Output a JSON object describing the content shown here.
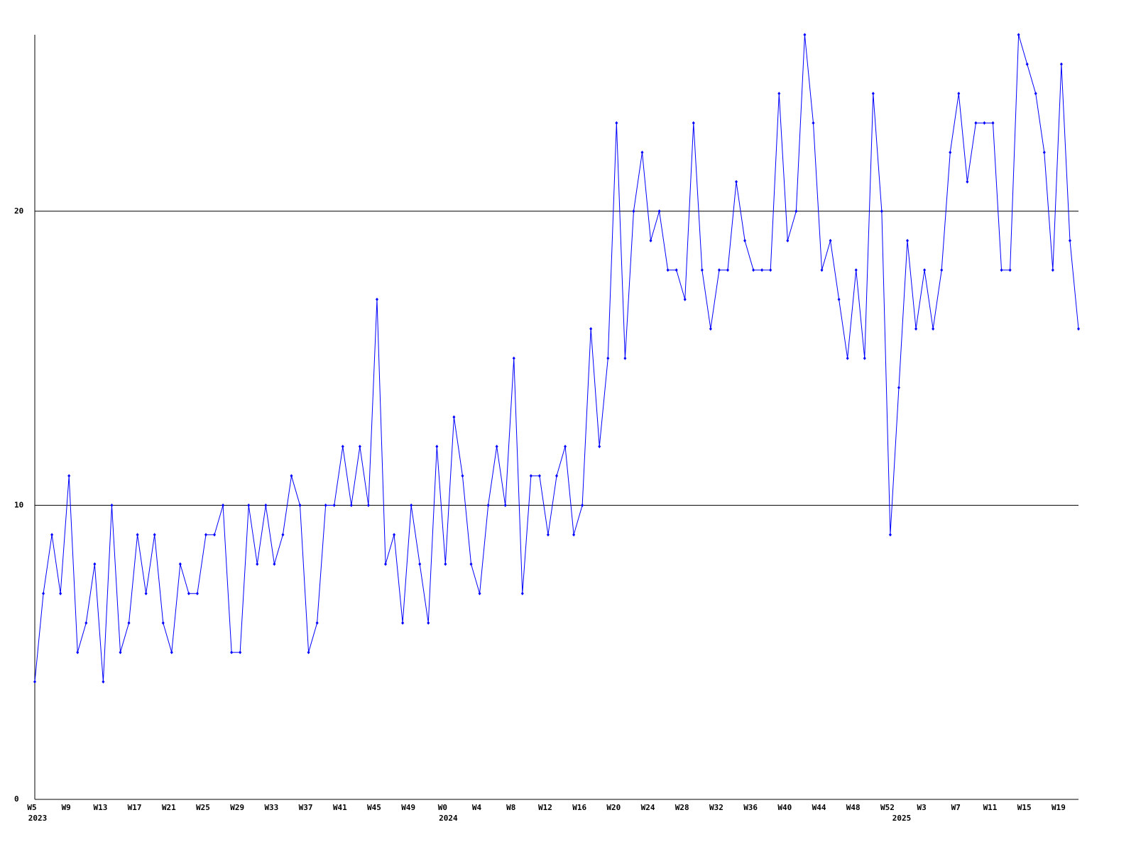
{
  "chart_data": {
    "type": "line",
    "categories": [
      "W5",
      null,
      null,
      null,
      "W9",
      null,
      null,
      null,
      "W13",
      null,
      null,
      null,
      "W17",
      null,
      null,
      null,
      "W21",
      null,
      null,
      null,
      "W25",
      null,
      null,
      null,
      "W29",
      null,
      null,
      null,
      "W33",
      null,
      null,
      null,
      "W37",
      null,
      null,
      null,
      "W41",
      null,
      null,
      null,
      "W45",
      null,
      null,
      null,
      "W49",
      null,
      null,
      null,
      "W0",
      null,
      null,
      null,
      "W4",
      null,
      null,
      null,
      "W8",
      null,
      null,
      null,
      "W12",
      null,
      null,
      null,
      "W16",
      null,
      null,
      null,
      "W20",
      null,
      null,
      null,
      "W24",
      null,
      null,
      null,
      "W28",
      null,
      null,
      null,
      "W32",
      null,
      null,
      null,
      "W36",
      null,
      null,
      null,
      "W40",
      null,
      null,
      null,
      "W44",
      null,
      null,
      null,
      "W48",
      null,
      null,
      null,
      "W52",
      null,
      null,
      null,
      "W3",
      null,
      null,
      null,
      "W7",
      null,
      null,
      null,
      "W11",
      null,
      null,
      null,
      "W15",
      null,
      null,
      null,
      "W19",
      null,
      null
    ],
    "category_years": [
      "2023",
      null,
      null,
      null,
      null,
      null,
      null,
      null,
      null,
      null,
      null,
      null,
      null,
      null,
      null,
      null,
      null,
      null,
      null,
      null,
      null,
      null,
      null,
      null,
      null,
      null,
      null,
      null,
      null,
      null,
      null,
      null,
      null,
      null,
      null,
      null,
      null,
      null,
      null,
      null,
      null,
      null,
      null,
      null,
      null,
      null,
      null,
      null,
      "2024",
      null,
      null,
      null,
      null,
      null,
      null,
      null,
      null,
      null,
      null,
      null,
      null,
      null,
      null,
      null,
      null,
      null,
      null,
      null,
      null,
      null,
      null,
      null,
      null,
      null,
      null,
      null,
      null,
      null,
      null,
      null,
      null,
      null,
      null,
      null,
      null,
      null,
      null,
      null,
      null,
      null,
      null,
      null,
      null,
      null,
      null,
      null,
      null,
      null,
      null,
      null,
      null,
      "2025",
      null,
      null,
      null,
      null,
      null,
      null,
      null,
      null,
      null,
      null,
      null,
      null,
      null,
      null,
      null,
      null,
      null,
      null,
      null,
      null,
      null
    ],
    "series": [
      {
        "color": "#0000ff",
        "values": [
          4,
          7,
          9,
          7,
          11,
          5,
          6,
          8,
          4,
          10,
          5,
          6,
          9,
          7,
          9,
          6,
          5,
          8,
          7,
          7,
          9,
          9,
          10,
          5,
          5,
          10,
          8,
          10,
          8,
          9,
          11,
          10,
          5,
          6,
          10,
          10,
          12,
          10,
          12,
          10,
          17,
          8,
          9,
          6,
          10,
          8,
          6,
          12,
          8,
          13,
          11,
          8,
          7,
          10,
          12,
          10,
          15,
          7,
          11,
          11,
          9,
          11,
          12,
          9,
          10,
          16,
          12,
          15,
          23,
          15,
          20,
          22,
          19,
          20,
          18,
          18,
          17,
          23,
          18,
          16,
          18,
          18,
          21,
          19,
          18,
          18,
          18,
          24,
          19,
          20,
          26,
          23,
          18,
          19,
          17,
          15,
          18,
          15,
          24,
          20,
          9,
          14,
          19,
          16,
          18,
          16,
          18,
          22,
          24,
          21,
          23,
          23,
          23,
          18,
          18,
          26,
          25,
          24,
          22,
          18,
          25,
          19,
          16
        ]
      }
    ],
    "ylim": [
      0,
      26
    ],
    "yticks": [
      0,
      10,
      20
    ],
    "grid": true
  }
}
